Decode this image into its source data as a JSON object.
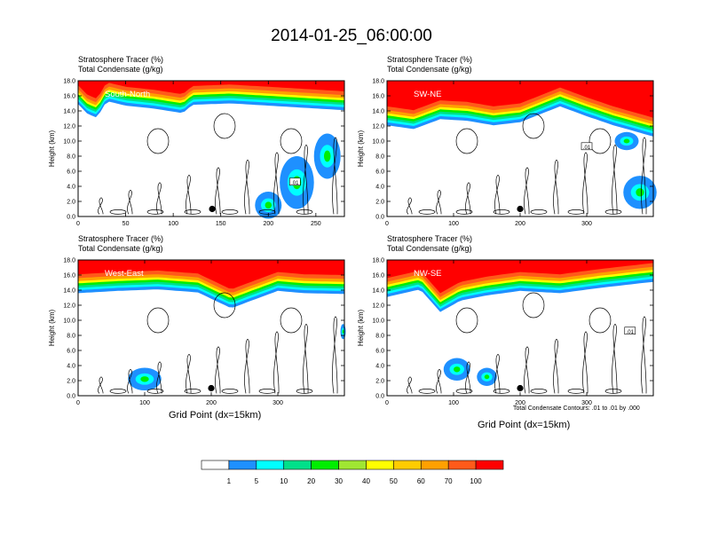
{
  "title": "2014-01-25_06:00:00",
  "header_line1": "Stratosphere Tracer   (%)",
  "header_line2": "Total Condensate   (g/kg)",
  "y_axis_label": "Height (km)",
  "x_axis_label": "Grid Point (dx=15km)",
  "contour_note": "Total Condensate Contours: .01 to .01 by .000",
  "colorbar": {
    "labels": [
      "1",
      "5",
      "10",
      "20",
      "30",
      "40",
      "50",
      "60",
      "70",
      "100"
    ],
    "colors": [
      "#ffffff",
      "#1e90ff",
      "#00ffff",
      "#00e08a",
      "#00ee00",
      "#a0e632",
      "#ffff00",
      "#ffcc00",
      "#ffa000",
      "#ff5a1a",
      "#ff0000"
    ]
  },
  "chart_data": [
    {
      "type": "heatmap",
      "panel_label": "South-North",
      "xlim": [
        0,
        280
      ],
      "x_ticks": [
        0,
        50,
        100,
        150,
        200,
        250
      ],
      "ylim": [
        0,
        18
      ],
      "y_ticks": [
        "0.0",
        "2.0",
        "4.0",
        "6.0",
        "8.0",
        "10.0",
        "12.0",
        "14.0",
        "16.0",
        "18.0"
      ],
      "contour_label": ".01",
      "contour_label_at": [
        228,
        4.5
      ],
      "marker_at": [
        141,
        1.0
      ],
      "tracer_base_km": [
        [
          0,
          15.8
        ],
        [
          10,
          14.5
        ],
        [
          20,
          14.0
        ],
        [
          30,
          16.2
        ],
        [
          50,
          15.6
        ],
        [
          80,
          15.2
        ],
        [
          110,
          14.6
        ],
        [
          120,
          15.7
        ],
        [
          160,
          15.9
        ],
        [
          200,
          15.6
        ],
        [
          240,
          15.3
        ],
        [
          280,
          15.0
        ]
      ],
      "blobs": [
        [
          230,
          4.5,
          18,
          3.5
        ],
        [
          200,
          1.5,
          14,
          1.8
        ],
        [
          262,
          8,
          14,
          3
        ]
      ]
    },
    {
      "type": "heatmap",
      "panel_label": "SW-NE",
      "xlim": [
        0,
        400
      ],
      "x_ticks": [
        0,
        100,
        200,
        300
      ],
      "ylim": [
        0,
        18
      ],
      "y_ticks": [
        "0.0",
        "2.0",
        "4.0",
        "6.0",
        "8.0",
        "10.0",
        "12.0",
        "14.0",
        "16.0",
        "18.0"
      ],
      "contour_label": ".01",
      "contour_label_at": [
        300,
        9.2
      ],
      "marker_at": [
        200,
        1.0
      ],
      "tracer_base_km": [
        [
          0,
          13.0
        ],
        [
          40,
          12.5
        ],
        [
          80,
          13.8
        ],
        [
          120,
          13.6
        ],
        [
          160,
          13.0
        ],
        [
          200,
          13.4
        ],
        [
          260,
          15.5
        ],
        [
          300,
          14.2
        ],
        [
          340,
          13.0
        ],
        [
          400,
          11.5
        ]
      ],
      "blobs": [
        [
          380,
          3.2,
          25,
          2.2
        ],
        [
          360,
          10,
          18,
          1.2
        ]
      ]
    },
    {
      "type": "heatmap",
      "panel_label": "West-East",
      "xlim": [
        0,
        400
      ],
      "x_ticks": [
        0,
        100,
        200,
        300
      ],
      "ylim": [
        0,
        18
      ],
      "y_ticks": [
        "0.0",
        "2.0",
        "4.0",
        "6.0",
        "8.0",
        "10.0",
        "12.0",
        "14.0",
        "16.0",
        "18.0"
      ],
      "contour_label": "",
      "contour_label_at": [
        0,
        0
      ],
      "marker_at": [
        200,
        1.0
      ],
      "tracer_base_km": [
        [
          0,
          14.5
        ],
        [
          60,
          14.8
        ],
        [
          120,
          15.0
        ],
        [
          180,
          14.6
        ],
        [
          230,
          12.5
        ],
        [
          260,
          13.5
        ],
        [
          300,
          14.8
        ],
        [
          340,
          14.5
        ],
        [
          400,
          14.4
        ]
      ],
      "blobs": [
        [
          100,
          2.2,
          25,
          1.5
        ],
        [
          398,
          8.5,
          4,
          1.0
        ]
      ]
    },
    {
      "type": "heatmap",
      "panel_label": "NW-SE",
      "xlim": [
        0,
        400
      ],
      "x_ticks": [
        0,
        100,
        200,
        300
      ],
      "ylim": [
        0,
        18
      ],
      "y_ticks": [
        "0.0",
        "2.0",
        "4.0",
        "6.0",
        "8.0",
        "10.0",
        "12.0",
        "14.0",
        "16.0",
        "18.0"
      ],
      "contour_label": ".01",
      ".01_positions_note": "",
      "contour_label_at": [
        365,
        8.5
      ],
      "marker_at": [
        200,
        1.0
      ],
      "tracer_base_km": [
        [
          0,
          14.0
        ],
        [
          50,
          15.0
        ],
        [
          80,
          12.0
        ],
        [
          110,
          13.5
        ],
        [
          150,
          14.2
        ],
        [
          200,
          14.8
        ],
        [
          260,
          14.5
        ],
        [
          320,
          15.2
        ],
        [
          400,
          16.0
        ]
      ],
      "blobs": [
        [
          105,
          3.5,
          20,
          1.5
        ],
        [
          150,
          2.5,
          15,
          1.2
        ]
      ]
    }
  ]
}
